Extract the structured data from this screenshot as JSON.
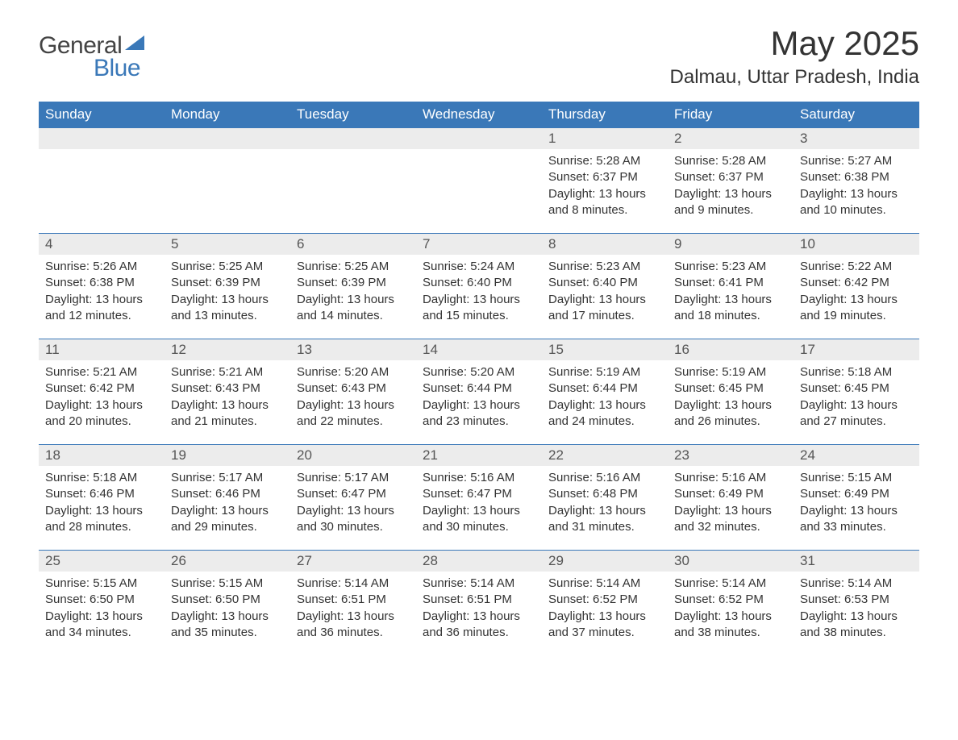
{
  "brand": {
    "word1": "General",
    "word2": "Blue"
  },
  "title": "May 2025",
  "location": "Dalmau, Uttar Pradesh, India",
  "colors": {
    "header_bg": "#3a78b8",
    "header_text": "#ffffff",
    "daynum_bg": "#ececec",
    "border": "#3a78b8",
    "body_text": "#333333",
    "brand_blue": "#3a78b8"
  },
  "weekdays": [
    "Sunday",
    "Monday",
    "Tuesday",
    "Wednesday",
    "Thursday",
    "Friday",
    "Saturday"
  ],
  "weeks": [
    [
      {
        "num": "",
        "sunrise": "",
        "sunset": "",
        "daylight": ""
      },
      {
        "num": "",
        "sunrise": "",
        "sunset": "",
        "daylight": ""
      },
      {
        "num": "",
        "sunrise": "",
        "sunset": "",
        "daylight": ""
      },
      {
        "num": "",
        "sunrise": "",
        "sunset": "",
        "daylight": ""
      },
      {
        "num": "1",
        "sunrise": "5:28 AM",
        "sunset": "6:37 PM",
        "daylight": "13 hours and 8 minutes."
      },
      {
        "num": "2",
        "sunrise": "5:28 AM",
        "sunset": "6:37 PM",
        "daylight": "13 hours and 9 minutes."
      },
      {
        "num": "3",
        "sunrise": "5:27 AM",
        "sunset": "6:38 PM",
        "daylight": "13 hours and 10 minutes."
      }
    ],
    [
      {
        "num": "4",
        "sunrise": "5:26 AM",
        "sunset": "6:38 PM",
        "daylight": "13 hours and 12 minutes."
      },
      {
        "num": "5",
        "sunrise": "5:25 AM",
        "sunset": "6:39 PM",
        "daylight": "13 hours and 13 minutes."
      },
      {
        "num": "6",
        "sunrise": "5:25 AM",
        "sunset": "6:39 PM",
        "daylight": "13 hours and 14 minutes."
      },
      {
        "num": "7",
        "sunrise": "5:24 AM",
        "sunset": "6:40 PM",
        "daylight": "13 hours and 15 minutes."
      },
      {
        "num": "8",
        "sunrise": "5:23 AM",
        "sunset": "6:40 PM",
        "daylight": "13 hours and 17 minutes."
      },
      {
        "num": "9",
        "sunrise": "5:23 AM",
        "sunset": "6:41 PM",
        "daylight": "13 hours and 18 minutes."
      },
      {
        "num": "10",
        "sunrise": "5:22 AM",
        "sunset": "6:42 PM",
        "daylight": "13 hours and 19 minutes."
      }
    ],
    [
      {
        "num": "11",
        "sunrise": "5:21 AM",
        "sunset": "6:42 PM",
        "daylight": "13 hours and 20 minutes."
      },
      {
        "num": "12",
        "sunrise": "5:21 AM",
        "sunset": "6:43 PM",
        "daylight": "13 hours and 21 minutes."
      },
      {
        "num": "13",
        "sunrise": "5:20 AM",
        "sunset": "6:43 PM",
        "daylight": "13 hours and 22 minutes."
      },
      {
        "num": "14",
        "sunrise": "5:20 AM",
        "sunset": "6:44 PM",
        "daylight": "13 hours and 23 minutes."
      },
      {
        "num": "15",
        "sunrise": "5:19 AM",
        "sunset": "6:44 PM",
        "daylight": "13 hours and 24 minutes."
      },
      {
        "num": "16",
        "sunrise": "5:19 AM",
        "sunset": "6:45 PM",
        "daylight": "13 hours and 26 minutes."
      },
      {
        "num": "17",
        "sunrise": "5:18 AM",
        "sunset": "6:45 PM",
        "daylight": "13 hours and 27 minutes."
      }
    ],
    [
      {
        "num": "18",
        "sunrise": "5:18 AM",
        "sunset": "6:46 PM",
        "daylight": "13 hours and 28 minutes."
      },
      {
        "num": "19",
        "sunrise": "5:17 AM",
        "sunset": "6:46 PM",
        "daylight": "13 hours and 29 minutes."
      },
      {
        "num": "20",
        "sunrise": "5:17 AM",
        "sunset": "6:47 PM",
        "daylight": "13 hours and 30 minutes."
      },
      {
        "num": "21",
        "sunrise": "5:16 AM",
        "sunset": "6:47 PM",
        "daylight": "13 hours and 30 minutes."
      },
      {
        "num": "22",
        "sunrise": "5:16 AM",
        "sunset": "6:48 PM",
        "daylight": "13 hours and 31 minutes."
      },
      {
        "num": "23",
        "sunrise": "5:16 AM",
        "sunset": "6:49 PM",
        "daylight": "13 hours and 32 minutes."
      },
      {
        "num": "24",
        "sunrise": "5:15 AM",
        "sunset": "6:49 PM",
        "daylight": "13 hours and 33 minutes."
      }
    ],
    [
      {
        "num": "25",
        "sunrise": "5:15 AM",
        "sunset": "6:50 PM",
        "daylight": "13 hours and 34 minutes."
      },
      {
        "num": "26",
        "sunrise": "5:15 AM",
        "sunset": "6:50 PM",
        "daylight": "13 hours and 35 minutes."
      },
      {
        "num": "27",
        "sunrise": "5:14 AM",
        "sunset": "6:51 PM",
        "daylight": "13 hours and 36 minutes."
      },
      {
        "num": "28",
        "sunrise": "5:14 AM",
        "sunset": "6:51 PM",
        "daylight": "13 hours and 36 minutes."
      },
      {
        "num": "29",
        "sunrise": "5:14 AM",
        "sunset": "6:52 PM",
        "daylight": "13 hours and 37 minutes."
      },
      {
        "num": "30",
        "sunrise": "5:14 AM",
        "sunset": "6:52 PM",
        "daylight": "13 hours and 38 minutes."
      },
      {
        "num": "31",
        "sunrise": "5:14 AM",
        "sunset": "6:53 PM",
        "daylight": "13 hours and 38 minutes."
      }
    ]
  ],
  "labels": {
    "sunrise": "Sunrise: ",
    "sunset": "Sunset: ",
    "daylight": "Daylight: "
  }
}
